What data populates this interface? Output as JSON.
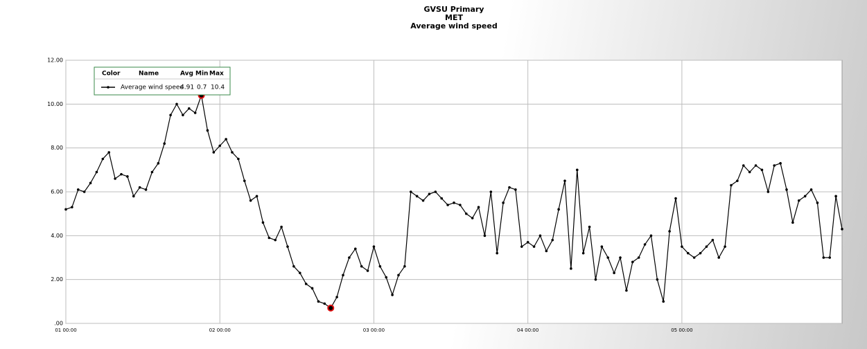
{
  "chart_data": {
    "type": "line",
    "title": [
      "GVSU Primary",
      "MET",
      "Average wind speed"
    ],
    "x": [
      1.0,
      1.04,
      1.08,
      1.12,
      1.16,
      1.2,
      1.24,
      1.28,
      1.32,
      1.36,
      1.4,
      1.44,
      1.48,
      1.52,
      1.56,
      1.6,
      1.64,
      1.68,
      1.72,
      1.76,
      1.8,
      1.84,
      1.88,
      1.92,
      1.96,
      2.0,
      2.04,
      2.08,
      2.12,
      2.16,
      2.2,
      2.24,
      2.28,
      2.32,
      2.36,
      2.4,
      2.44,
      2.48,
      2.52,
      2.56,
      2.6,
      2.64,
      2.68,
      2.72,
      2.76,
      2.8,
      2.84,
      2.88,
      2.92,
      2.96,
      3.0,
      3.04,
      3.08,
      3.12,
      3.16,
      3.2,
      3.24,
      3.28,
      3.32,
      3.36,
      3.4,
      3.44,
      3.48,
      3.52,
      3.56,
      3.6,
      3.64,
      3.68,
      3.72,
      3.76,
      3.8,
      3.84,
      3.88,
      3.92,
      3.96,
      4.0,
      4.04,
      4.08,
      4.12,
      4.16,
      4.2,
      4.24,
      4.28,
      4.32,
      4.36,
      4.4,
      4.44,
      4.48,
      4.52,
      4.56,
      4.6,
      4.64,
      4.68,
      4.72,
      4.76,
      4.8,
      4.84,
      4.88,
      4.92,
      4.96,
      5.0,
      5.04,
      5.08,
      5.12,
      5.16,
      5.2,
      5.24,
      5.28,
      5.32,
      5.36,
      5.4,
      5.44,
      5.48,
      5.52,
      5.56,
      5.6,
      5.64,
      5.68,
      5.72,
      5.76,
      5.8,
      5.84,
      5.88,
      5.92,
      5.96,
      6.0,
      6.04
    ],
    "series": [
      {
        "name": "Average wind speed",
        "color": "#000000",
        "values": [
          5.2,
          5.3,
          6.1,
          6.0,
          6.4,
          6.9,
          7.5,
          7.8,
          6.6,
          6.8,
          6.7,
          5.8,
          6.2,
          6.1,
          6.9,
          7.3,
          8.2,
          9.5,
          10.0,
          9.5,
          9.8,
          9.6,
          10.4,
          8.8,
          7.8,
          8.1,
          8.4,
          7.8,
          7.5,
          6.5,
          5.6,
          5.8,
          4.6,
          3.9,
          3.8,
          4.4,
          3.5,
          2.6,
          2.3,
          1.8,
          1.6,
          1.0,
          0.9,
          0.7,
          1.2,
          2.2,
          3.0,
          3.4,
          2.6,
          2.4,
          3.5,
          2.6,
          2.1,
          1.3,
          2.2,
          2.6,
          6.0,
          5.8,
          5.6,
          5.9,
          6.0,
          5.7,
          5.4,
          5.5,
          5.4,
          5.0,
          4.8,
          5.3,
          4.0,
          6.0,
          3.2,
          5.5,
          6.2,
          6.1,
          3.5,
          3.7,
          3.5,
          4.0,
          3.3,
          3.8,
          5.2,
          6.5,
          2.5,
          7.0,
          3.2,
          4.4,
          2.0,
          3.5,
          3.0,
          2.3,
          3.0,
          1.5,
          2.8,
          3.0,
          3.6,
          4.0,
          2.0,
          1.0,
          4.2,
          5.7,
          3.5,
          3.2,
          3.0,
          3.2,
          3.5,
          3.8,
          3.0,
          3.5,
          6.3,
          6.5,
          7.2,
          6.9,
          7.2,
          7.0,
          6.0,
          7.2,
          7.3,
          6.1,
          4.6,
          5.6,
          5.8,
          6.1,
          5.5,
          3.0,
          3.0,
          5.8,
          4.3
        ]
      }
    ],
    "xlim": [
      1,
      6.04
    ],
    "xticks": [
      {
        "value": 1,
        "label": "01 00:00"
      },
      {
        "value": 2,
        "label": "02 00:00"
      },
      {
        "value": 3,
        "label": "03 00:00"
      },
      {
        "value": 4,
        "label": "04 00:00"
      },
      {
        "value": 5,
        "label": "05 00:00"
      }
    ],
    "ylim": [
      0,
      12
    ],
    "yticks": [
      {
        "value": 0,
        "label": ".00"
      },
      {
        "value": 2,
        "label": "2.00"
      },
      {
        "value": 4,
        "label": "4.00"
      },
      {
        "value": 6,
        "label": "6.00"
      },
      {
        "value": 8,
        "label": "8.00"
      },
      {
        "value": 10,
        "label": "10.00"
      },
      {
        "value": 12,
        "label": "12.00"
      }
    ],
    "grid": true,
    "legend": {
      "headers": [
        "Color",
        "Name",
        "Avg",
        "Min",
        "Max"
      ],
      "avg": 4.91,
      "min": 0.7,
      "max": 10.4
    }
  }
}
